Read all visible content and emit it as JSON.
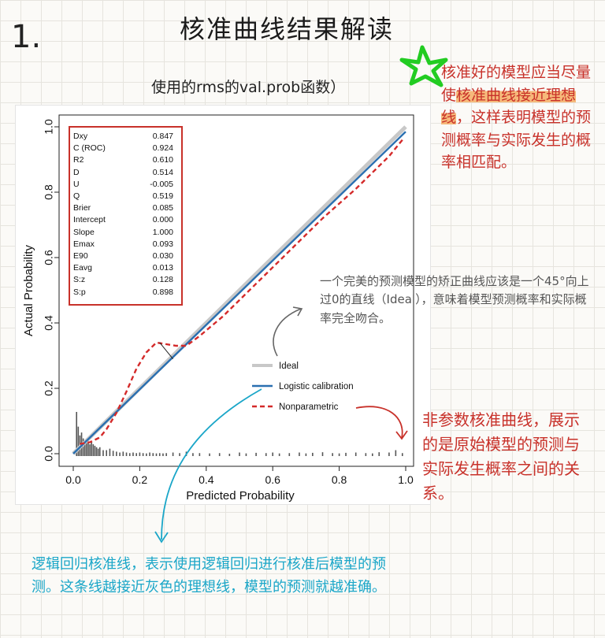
{
  "page": {
    "number": "1.",
    "title": "核准曲线结果解读",
    "subtitle": "使用的rms的val.prob函数）"
  },
  "chart_data": {
    "type": "line",
    "xlabel": "Predicted Probability",
    "ylabel": "Actual Probability",
    "xlim": [
      0,
      1
    ],
    "ylim": [
      0,
      1
    ],
    "xticks": [
      "0.0",
      "0.2",
      "0.4",
      "0.6",
      "0.8",
      "1.0"
    ],
    "yticks": [
      "0.0",
      "0.2",
      "0.4",
      "0.6",
      "0.8",
      "1.0"
    ],
    "stats": [
      {
        "k": "Dxy",
        "v": "0.847"
      },
      {
        "k": "C (ROC)",
        "v": "0.924"
      },
      {
        "k": "R2",
        "v": "0.610"
      },
      {
        "k": "D",
        "v": "0.514"
      },
      {
        "k": "U",
        "v": "-0.005"
      },
      {
        "k": "Q",
        "v": "0.519"
      },
      {
        "k": "Brier",
        "v": "0.085"
      },
      {
        "k": "Intercept",
        "v": "0.000"
      },
      {
        "k": "Slope",
        "v": "1.000"
      },
      {
        "k": "Emax",
        "v": "0.093"
      },
      {
        "k": "E90",
        "v": "0.030"
      },
      {
        "k": "Eavg",
        "v": "0.013"
      },
      {
        "k": "S:z",
        "v": "0.128"
      },
      {
        "k": "S:p",
        "v": "0.898"
      }
    ],
    "legend": [
      {
        "name": "Ideal",
        "color": "#c8c8c8",
        "style": "solid"
      },
      {
        "name": "Logistic calibration",
        "color": "#2a6fb0",
        "style": "solid"
      },
      {
        "name": "Nonparametric",
        "color": "#d42a2a",
        "style": "dashed"
      }
    ],
    "series": [
      {
        "name": "Ideal",
        "x": [
          0,
          1
        ],
        "y": [
          0,
          1
        ]
      },
      {
        "name": "Logistic calibration",
        "x": [
          0,
          1
        ],
        "y": [
          0,
          0.985
        ]
      },
      {
        "name": "Nonparametric",
        "x": [
          0.02,
          0.05,
          0.08,
          0.1,
          0.13,
          0.16,
          0.19,
          0.22,
          0.25,
          0.28,
          0.31,
          0.34,
          0.38,
          0.45,
          0.55,
          0.65,
          0.75,
          0.85,
          0.95,
          0.99
        ],
        "y": [
          0.03,
          0.035,
          0.05,
          0.075,
          0.125,
          0.19,
          0.26,
          0.31,
          0.34,
          0.335,
          0.33,
          0.33,
          0.36,
          0.42,
          0.52,
          0.62,
          0.72,
          0.81,
          0.91,
          0.96
        ]
      }
    ],
    "histogram": {
      "x": [
        0.01,
        0.015,
        0.02,
        0.025,
        0.03,
        0.035,
        0.04,
        0.045,
        0.05,
        0.055,
        0.06,
        0.065,
        0.07,
        0.075,
        0.08,
        0.09,
        0.1,
        0.11,
        0.12,
        0.13,
        0.14,
        0.15,
        0.16,
        0.17,
        0.18,
        0.19,
        0.2,
        0.21,
        0.22,
        0.23,
        0.24,
        0.25,
        0.26,
        0.27,
        0.28,
        0.3,
        0.32,
        0.34,
        0.36,
        0.38,
        0.41,
        0.44,
        0.47,
        0.5,
        0.52,
        0.55,
        0.58,
        0.6,
        0.62,
        0.65,
        0.68,
        0.7,
        0.72,
        0.75,
        0.78,
        0.8,
        0.82,
        0.85,
        0.88,
        0.9,
        0.92,
        0.95,
        0.97,
        0.99
      ],
      "h": [
        0.15,
        0.1,
        0.07,
        0.08,
        0.06,
        0.05,
        0.06,
        0.05,
        0.04,
        0.05,
        0.04,
        0.035,
        0.03,
        0.025,
        0.03,
        0.02,
        0.02,
        0.025,
        0.018,
        0.015,
        0.012,
        0.015,
        0.012,
        0.01,
        0.012,
        0.01,
        0.012,
        0.01,
        0.009,
        0.012,
        0.01,
        0.009,
        0.01,
        0.009,
        0.01,
        0.012,
        0.01,
        0.015,
        0.01,
        0.01,
        0.009,
        0.01,
        0.008,
        0.012,
        0.009,
        0.011,
        0.01,
        0.012,
        0.009,
        0.01,
        0.012,
        0.009,
        0.011,
        0.013,
        0.01,
        0.009,
        0.011,
        0.012,
        0.01,
        0.009,
        0.013,
        0.012,
        0.02,
        0.01
      ]
    }
  },
  "notes": {
    "ideal": "一个完美的预测模型的矫正曲线应该是一个45°向上过0的直线（Ideal），意味着模型预测概率和实际概率完全吻合。",
    "good_a": "核准好的模型应当尽量使",
    "good_b": "核准曲线接近理想线",
    "good_c": "，这样表明模型的预测概率与实际发生的概率相匹配。",
    "nonparametric": "非参数核准曲线，展示的是原始模型的预测与实际发生概率之间的关系。",
    "logistic": "逻辑回归核准线，表示使用逻辑回归进行核准后模型的预测。这条线越接近灰色的理想线，模型的预测就越准确。"
  },
  "colors": {
    "accent_red": "#c8312a",
    "accent_cyan": "#1aa6c8",
    "highlight_orange": "#f6b97a",
    "star_green": "#22cc22"
  }
}
